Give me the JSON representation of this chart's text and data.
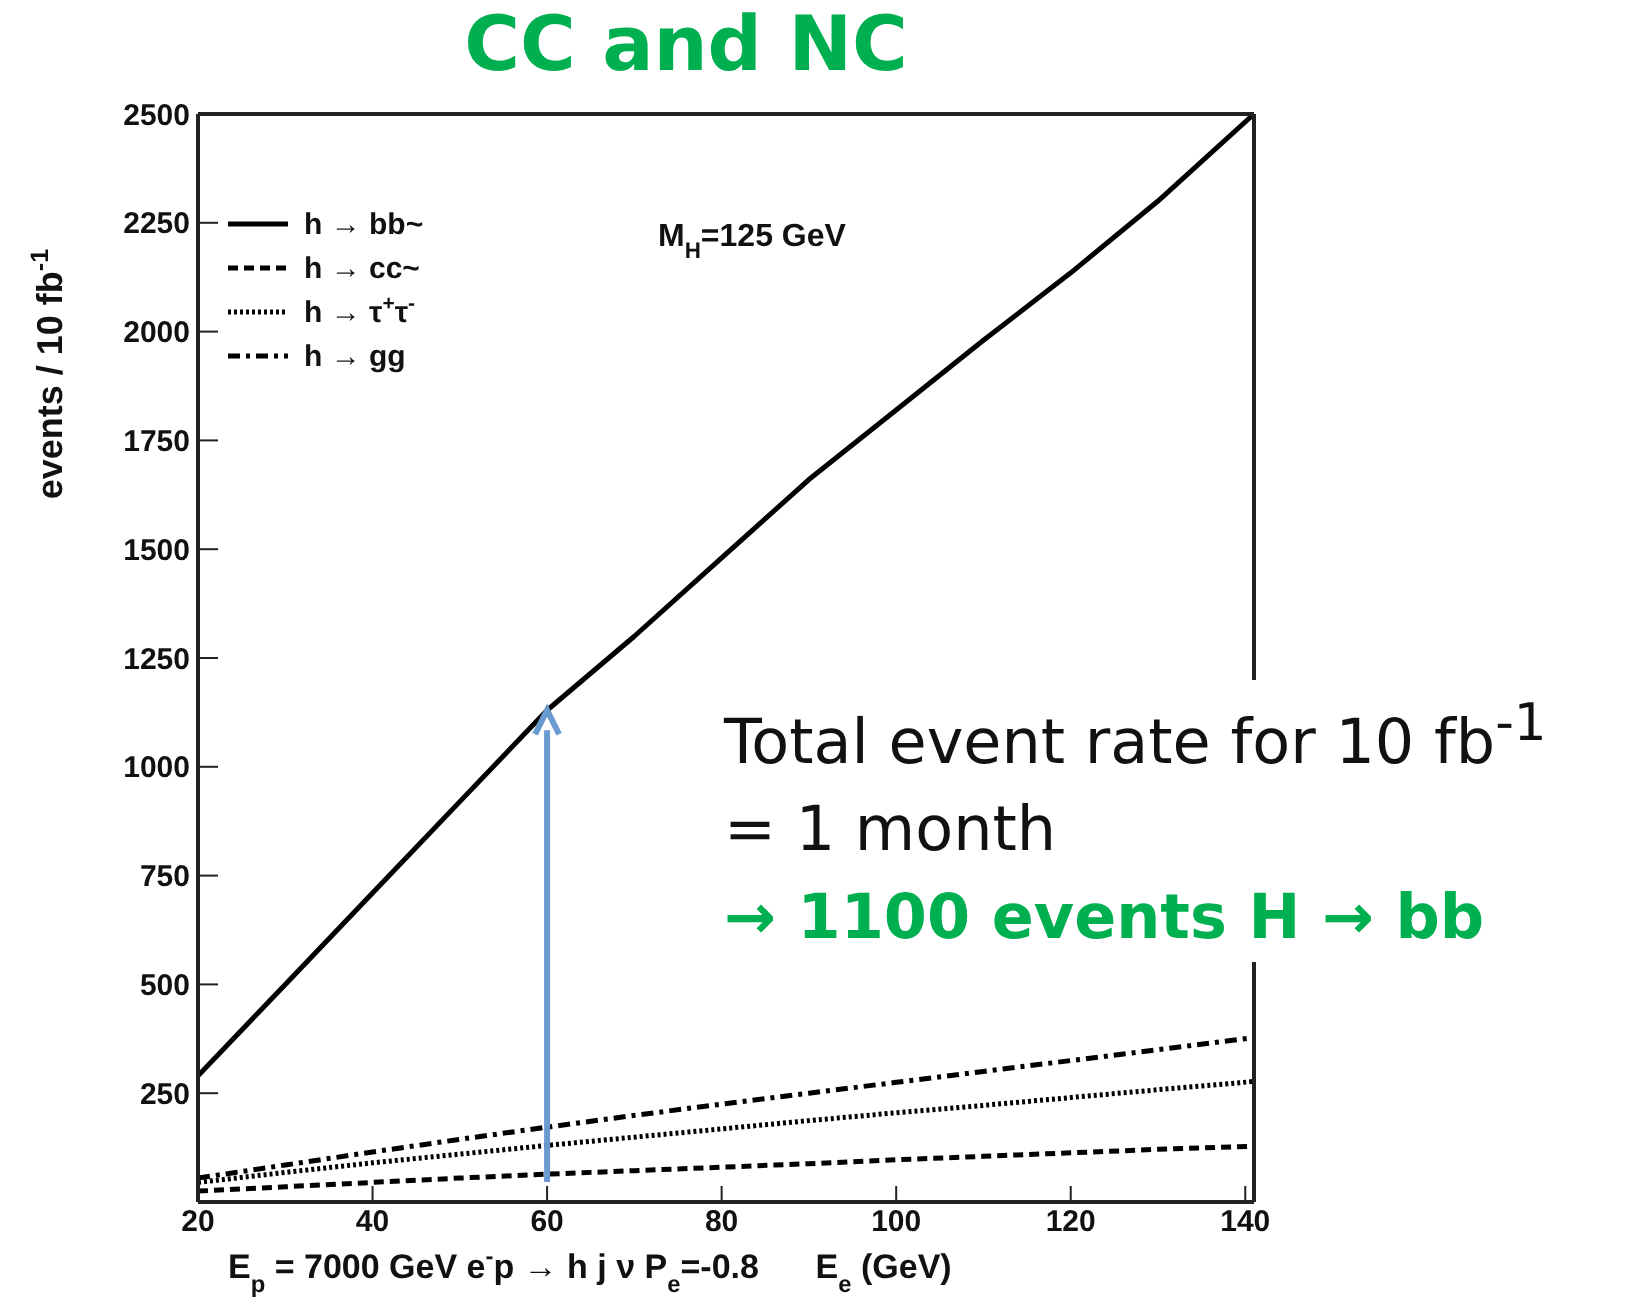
{
  "chart_data": {
    "type": "line",
    "title": "CC and NC",
    "xlabel": "E$_{p}$ = 7000 GeV e$^{-}$p → h j ν P$_{e}$=-0.8      E$_{e}$ (GeV)",
    "ylabel": "events / 10 fb$^{-1}$",
    "x": [
      20,
      30,
      40,
      50,
      60,
      70,
      80,
      90,
      100,
      110,
      120,
      130,
      141
    ],
    "series": [
      {
        "name": "h → bb~",
        "color": "#000000",
        "line_style": "solid",
        "values": [
          290,
          500,
          710,
          920,
          1130,
          1300,
          1480,
          1660,
          1820,
          1980,
          2135,
          2300,
          2500
        ]
      },
      {
        "name": "h → cc~",
        "color": "#000000",
        "line_style": "dashed",
        "values": [
          25,
          35,
          45,
          55,
          64,
          72,
          80,
          88,
          97,
          105,
          113,
          121,
          128
        ]
      },
      {
        "name": "h → τ$^{+}$τ$^{-}$",
        "color": "#000000",
        "line_style": "dotted",
        "values": [
          45,
          68,
          90,
          110,
          130,
          149,
          168,
          187,
          205,
          222,
          240,
          258,
          277
        ]
      },
      {
        "name": "h → gg",
        "color": "#000000",
        "line_style": "dashdot",
        "values": [
          55,
          85,
          115,
          144,
          172,
          199,
          225,
          250,
          275,
          300,
          325,
          350,
          378
        ]
      }
    ],
    "xlim": [
      20,
      141
    ],
    "xticks": [
      20,
      40,
      60,
      80,
      100,
      120,
      140
    ],
    "ylim": [
      0,
      2500
    ],
    "yticks": [
      250,
      500,
      750,
      1000,
      1250,
      1500,
      1750,
      2000,
      2250,
      2500
    ],
    "grid": false,
    "legend": "top left",
    "annotations": [
      "M$_{H}$=125 GeV",
      "Total event rate for 10 fb$^{-1}$ = 1 month",
      "→ 1100 events H → bb"
    ]
  }
}
